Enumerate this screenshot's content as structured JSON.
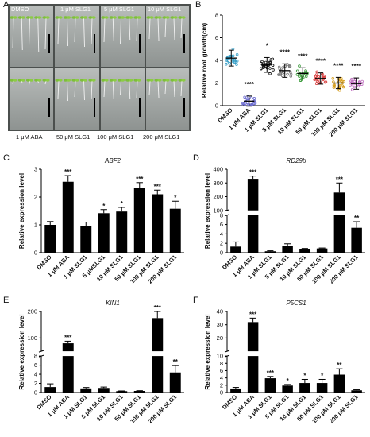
{
  "panel_labels": {
    "a": "A",
    "b": "B",
    "c": "C",
    "d": "D",
    "e": "E",
    "f": "F"
  },
  "photo": {
    "top_labels": [
      "DMSO",
      "1 μM SLG1",
      "5 μM SLG1",
      "10 μM SLG1"
    ],
    "bottom_labels": [
      "1 μM ABA",
      "50 μM SLG1",
      "100 μM SLG1",
      "200 μM SLG1"
    ]
  },
  "colors": {
    "bar": "#000000",
    "scatter": [
      "#3aa0c8",
      "#6c6cd0",
      "#111111",
      "#777777",
      "#3a9a3a",
      "#d84040",
      "#d8a020",
      "#c070c0"
    ]
  },
  "chart_data": [
    {
      "id": "B",
      "type": "scatter",
      "title": "",
      "ylabel": "Relative root growth(cm)",
      "categories": [
        "DMSO",
        "1 μM ABA",
        "1 μM SLG1",
        "5 μM SLG1",
        "10 μM SLG1",
        "50 μM SLG1",
        "100 μM SLG1",
        "200 μM SLG1"
      ],
      "means": [
        4.2,
        0.4,
        3.6,
        3.1,
        2.85,
        2.4,
        2.0,
        1.95
      ],
      "sd": [
        0.7,
        0.45,
        0.65,
        0.6,
        0.5,
        0.5,
        0.5,
        0.5
      ],
      "ylim": [
        0,
        8
      ],
      "yticks": [
        0,
        2,
        4,
        6,
        8
      ],
      "significance": [
        "",
        "****",
        "*",
        "****",
        "****",
        "****",
        "****",
        "****"
      ]
    },
    {
      "id": "C",
      "type": "bar",
      "title": "ABF2",
      "ylabel": "Relative expression level",
      "categories": [
        "DMSO",
        "1 μM ABA",
        "1 μM SLG1",
        "5 μMSLG1",
        "10 μM SLG1",
        "50 μM SLG1",
        "100 μM SLG1",
        "200 μM SLG1"
      ],
      "values": [
        1.0,
        2.55,
        0.95,
        1.42,
        1.48,
        2.32,
        2.1,
        1.58
      ],
      "errors": [
        0.12,
        0.22,
        0.15,
        0.13,
        0.15,
        0.2,
        0.15,
        0.27
      ],
      "ylim": [
        0,
        3
      ],
      "yticks": [
        0,
        1,
        2,
        3
      ],
      "significance": [
        "",
        "***",
        "",
        "*",
        "*",
        "***",
        "***",
        "*"
      ]
    },
    {
      "id": "D",
      "type": "bar",
      "title": "RD29b",
      "ylabel": "Relative expression level",
      "categories": [
        "DMSO",
        "1 μM ABA",
        "1 μM SLG1",
        "5 μM SLG1",
        "10 μM SLG1",
        "50 μM SLG1",
        "100 μM SLG1",
        "200 μM SLG1"
      ],
      "values": [
        1.3,
        330,
        0.3,
        1.5,
        0.8,
        0.9,
        230,
        5.3
      ],
      "errors": [
        1.0,
        20,
        0.1,
        0.4,
        0.1,
        0.1,
        70,
        1.3
      ],
      "ylim": [
        0,
        400
      ],
      "yticks": [
        0,
        2,
        4,
        6,
        8,
        100,
        200,
        300,
        400
      ],
      "axis_break": [
        8,
        100
      ],
      "significance": [
        "",
        "***",
        "",
        "",
        "",
        "",
        "***",
        "**"
      ]
    },
    {
      "id": "E",
      "type": "bar",
      "title": "KIN1",
      "ylabel": "Relative expression level",
      "categories": [
        "DMSO",
        "1 μM ABA",
        "1 μM SLG1",
        "5 μM SLG1",
        "10 μM SLG1",
        "50 μM SLG1",
        "100 μM SLG1",
        "200 μM SLG1"
      ],
      "values": [
        1.2,
        80,
        0.9,
        1.0,
        0.3,
        0.35,
        175,
        4.4
      ],
      "errors": [
        0.7,
        8,
        0.2,
        0.2,
        0.05,
        0.05,
        25,
        1.5
      ],
      "ylim": [
        0,
        200
      ],
      "yticks": [
        0,
        2,
        4,
        6,
        8,
        100,
        200
      ],
      "axis_break": [
        8,
        50
      ],
      "significance": [
        "",
        "***",
        "",
        "",
        "",
        "",
        "***",
        "**"
      ]
    },
    {
      "id": "F",
      "type": "bar",
      "title": "P5CS1",
      "ylabel": "Relative expression level",
      "categories": [
        "DMSO",
        "1 μM ABA",
        "1 μM SLG1",
        "5 μM SLG1",
        "10 μM SLG1",
        "50 μM SLG1",
        "100 μM SLG1",
        "200 μM SLG1"
      ],
      "values": [
        1.1,
        32,
        3.9,
        1.9,
        2.6,
        2.6,
        4.9,
        0.6
      ],
      "errors": [
        0.3,
        3,
        0.5,
        0.3,
        1.0,
        1.0,
        1.6,
        0.15
      ],
      "ylim": [
        0,
        40
      ],
      "yticks": [
        0,
        2,
        4,
        6,
        8,
        10,
        20,
        30,
        40
      ],
      "axis_break": [
        10,
        10
      ],
      "significance": [
        "",
        "***",
        "***",
        "*",
        "*",
        "*",
        "**",
        ""
      ]
    }
  ]
}
